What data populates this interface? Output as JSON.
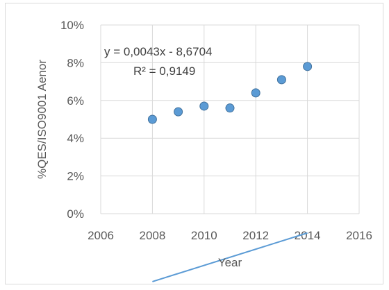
{
  "chart_data": {
    "type": "scatter",
    "title": "",
    "xlabel": "Year",
    "ylabel": "%QES/ISO9001 Aenor",
    "xlim": [
      2006,
      2016
    ],
    "ylim": [
      0,
      0.1
    ],
    "x_ticks": [
      "2006",
      "2008",
      "2010",
      "2012",
      "2014",
      "2016"
    ],
    "y_ticks": [
      "0%",
      "2%",
      "4%",
      "6%",
      "8%",
      "10%"
    ],
    "x_tick_values": [
      2006,
      2008,
      2010,
      2012,
      2014,
      2016
    ],
    "y_tick_values": [
      0,
      0.02,
      0.04,
      0.06,
      0.08,
      0.1
    ],
    "grid": "horizontal and vertical",
    "series": [
      {
        "x": [
          2008,
          2009,
          2010,
          2011,
          2012,
          2013,
          2014
        ],
        "y": [
          0.05,
          0.054,
          0.057,
          0.056,
          0.064,
          0.071,
          0.078
        ],
        "color": "#5b9bd5"
      }
    ],
    "trendline": {
      "type": "linear",
      "slope": 0.0043,
      "intercept": -8.6704,
      "x_range": [
        2008,
        2014
      ],
      "color": "#5b9bd5",
      "equation_label": "y = 0,0043x - 8,6704",
      "r2_label": "R² = 0,9149"
    }
  }
}
